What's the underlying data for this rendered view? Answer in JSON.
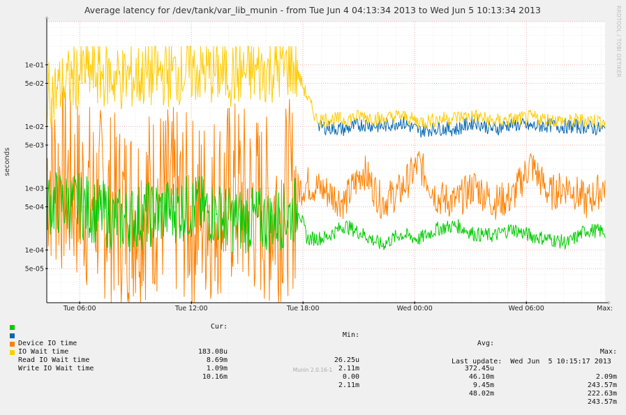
{
  "chart_data": {
    "type": "line",
    "title": "Average latency for /dev/tank/var_lib_munin - from Tue Jun  4 04:13:34 2013 to Wed Jun  5 10:13:34 2013",
    "ylabel": "seconds",
    "xlabel": "",
    "yscale": "log",
    "ylim": [
      1.4e-05,
      0.5
    ],
    "xlim_hours": [
      0,
      30
    ],
    "x_ticks": [
      {
        "label": "Tue 06:00",
        "hour": 1.77
      },
      {
        "label": "Tue 12:00",
        "hour": 7.77
      },
      {
        "label": "Tue 18:00",
        "hour": 13.77
      },
      {
        "label": "Wed 00:00",
        "hour": 19.77
      },
      {
        "label": "Wed 06:00",
        "hour": 25.77
      },
      {
        "label": "Max:",
        "hour": 29.9
      }
    ],
    "y_ticks": [
      {
        "label": "1e-01",
        "value": 0.1
      },
      {
        "label": "5e-02",
        "value": 0.05
      },
      {
        "label": "1e-02",
        "value": 0.01
      },
      {
        "label": "5e-03",
        "value": 0.005
      },
      {
        "label": "1e-03",
        "value": 0.001
      },
      {
        "label": "5e-04",
        "value": 0.0005
      },
      {
        "label": "1e-04",
        "value": 0.0001
      },
      {
        "label": "5e-05",
        "value": 5e-05
      }
    ],
    "grid": true,
    "series": [
      {
        "name": "Device IO time",
        "color": "#00cc00",
        "cur": "183.08u",
        "min": "26.25u",
        "avg": "372.45u",
        "max": "2.09m",
        "keypoints": [
          [
            0,
            0.0006
          ],
          [
            2,
            0.0005
          ],
          [
            4,
            0.0003
          ],
          [
            6,
            0.0004
          ],
          [
            8,
            0.0005
          ],
          [
            10,
            0.0003
          ],
          [
            12,
            0.0003
          ],
          [
            13.2,
            0.0004
          ],
          [
            13.5,
            0.0005
          ],
          [
            14,
            0.00015
          ],
          [
            15,
            0.00016
          ],
          [
            16,
            0.00025
          ],
          [
            17,
            0.00018
          ],
          [
            18,
            0.00012
          ],
          [
            19,
            0.00018
          ],
          [
            20,
            0.00015
          ],
          [
            21,
            0.00022
          ],
          [
            22,
            0.00025
          ],
          [
            23,
            0.00018
          ],
          [
            24,
            0.00017
          ],
          [
            25,
            0.00022
          ],
          [
            26,
            0.00017
          ],
          [
            27,
            0.00015
          ],
          [
            28,
            0.00013
          ],
          [
            29,
            0.00021
          ],
          [
            30,
            0.0002
          ]
        ]
      },
      {
        "name": "IO Wait time",
        "color": "#0066b3",
        "cur": "8.69m",
        "min": "2.11m",
        "avg": "46.10m",
        "max": "243.57m",
        "keypoints": [
          [
            14.6,
            0.01
          ],
          [
            16,
            0.009
          ],
          [
            17,
            0.011
          ],
          [
            18,
            0.01
          ],
          [
            19,
            0.012
          ],
          [
            20,
            0.0085
          ],
          [
            21,
            0.0095
          ],
          [
            22,
            0.009
          ],
          [
            23,
            0.012
          ],
          [
            24,
            0.009
          ],
          [
            25,
            0.011
          ],
          [
            26,
            0.01
          ],
          [
            27,
            0.0105
          ],
          [
            28,
            0.01
          ],
          [
            29,
            0.01
          ],
          [
            30,
            0.0087
          ]
        ]
      },
      {
        "name": "Read IO Wait time",
        "color": "#ff8000",
        "cur": "1.09m",
        "min": "0.00",
        "avg": "9.45m",
        "max": "222.63m",
        "keypoints": [
          [
            0,
            0.002
          ],
          [
            2,
            0.0008
          ],
          [
            4,
            0.0004
          ],
          [
            6,
            0.0007
          ],
          [
            8,
            0.0004
          ],
          [
            10,
            0.0008
          ],
          [
            12,
            0.0004
          ],
          [
            13.2,
            0.0008
          ],
          [
            14,
            0.0012
          ],
          [
            15,
            0.0009
          ],
          [
            16,
            0.0006
          ],
          [
            17,
            0.002
          ],
          [
            18,
            0.0006
          ],
          [
            19,
            0.0009
          ],
          [
            20,
            0.0025
          ],
          [
            21,
            0.0007
          ],
          [
            22,
            0.0006
          ],
          [
            23,
            0.0011
          ],
          [
            24,
            0.0006
          ],
          [
            25,
            0.0007
          ],
          [
            26,
            0.0025
          ],
          [
            27,
            0.0008
          ],
          [
            28,
            0.0011
          ],
          [
            29,
            0.0006
          ],
          [
            30,
            0.0011
          ]
        ]
      },
      {
        "name": "Write IO Wait time",
        "color": "#ffcc00",
        "cur": "10.16m",
        "min": "2.11m",
        "avg": "48.02m",
        "max": "243.57m",
        "keypoints": [
          [
            0,
            0.03
          ],
          [
            2,
            0.08
          ],
          [
            4,
            0.06
          ],
          [
            6,
            0.07
          ],
          [
            8,
            0.08
          ],
          [
            10,
            0.07
          ],
          [
            12,
            0.08
          ],
          [
            13.2,
            0.1
          ],
          [
            13.6,
            0.06
          ],
          [
            14,
            0.03
          ],
          [
            14.5,
            0.013
          ],
          [
            16,
            0.013
          ],
          [
            17,
            0.015
          ],
          [
            18,
            0.013
          ],
          [
            19,
            0.015
          ],
          [
            20,
            0.012
          ],
          [
            21,
            0.013
          ],
          [
            22,
            0.014
          ],
          [
            23,
            0.015
          ],
          [
            24,
            0.012
          ],
          [
            25,
            0.013
          ],
          [
            26,
            0.014
          ],
          [
            27,
            0.013
          ],
          [
            28,
            0.012
          ],
          [
            29,
            0.013
          ],
          [
            30,
            0.012
          ]
        ]
      }
    ]
  },
  "legend": {
    "col_headers": {
      "cur": "Cur:",
      "min": "Min:",
      "avg": "Avg:",
      "max": "Max:"
    },
    "last_update": "Last update:  Wed Jun  5 10:15:17 2013"
  },
  "side_text": "RRDTOOL / TOBI OETIKER",
  "footer": "Munin 2.0.16-1"
}
